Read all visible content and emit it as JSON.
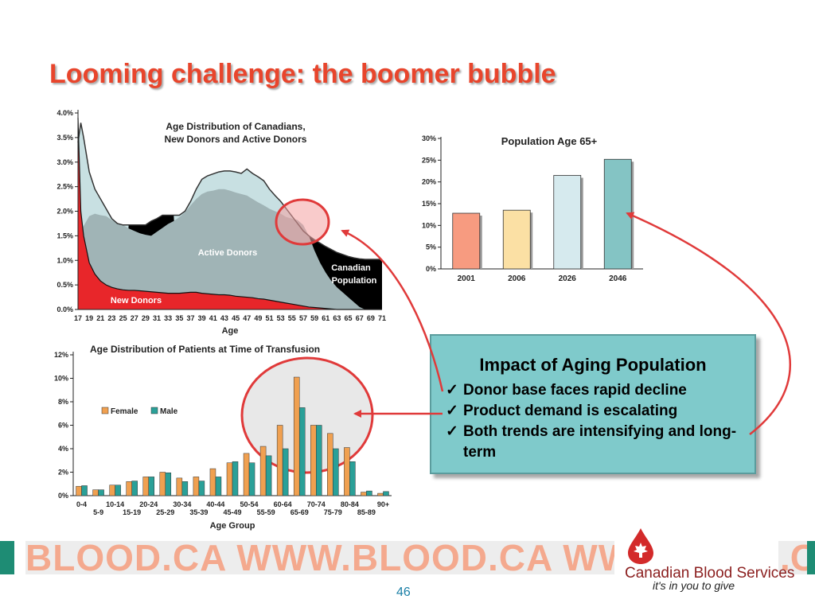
{
  "title": "Looming challenge: the boomer bubble",
  "chart_data": [
    {
      "type": "area",
      "title": "Age Distribution of Canadians,\nNew Donors and Active Donors",
      "title_lines": [
        "Age Distribution of Canadians,",
        "New Donors and Active Donors"
      ],
      "xlabel": "Age",
      "ylabel": "",
      "ylim": [
        0,
        4.0
      ],
      "y_ticks": [
        "0.0%",
        "0.5%",
        "1.0%",
        "1.5%",
        "2.0%",
        "2.5%",
        "3.0%",
        "3.5%",
        "4.0%"
      ],
      "x_ticks": [
        "17",
        "19",
        "21",
        "23",
        "25",
        "27",
        "29",
        "31",
        "33",
        "35",
        "37",
        "39",
        "41",
        "43",
        "45",
        "47",
        "49",
        "51",
        "53",
        "55",
        "57",
        "59",
        "61",
        "63",
        "65",
        "67",
        "69",
        "71"
      ],
      "x": [
        17,
        17.5,
        18,
        19,
        20,
        21,
        22,
        23,
        24,
        25,
        26,
        27,
        28,
        29,
        30,
        31,
        32,
        33,
        34,
        35,
        36,
        37,
        38,
        39,
        40,
        41,
        42,
        43,
        44,
        45,
        46,
        47,
        48,
        49,
        50,
        51,
        52,
        53,
        54,
        55,
        56,
        57,
        58,
        59,
        60,
        61,
        62,
        63,
        64,
        65,
        66,
        67,
        68,
        69,
        70,
        71
      ],
      "series": [
        {
          "name": "Canadian Population",
          "color": "#000000",
          "values": [
            3.4,
            3.8,
            3.5,
            2.8,
            2.45,
            2.25,
            2.05,
            1.85,
            1.75,
            1.72,
            1.72,
            1.72,
            1.72,
            1.72,
            1.8,
            1.85,
            1.92,
            1.92,
            1.92,
            1.92,
            2.0,
            2.2,
            2.45,
            2.65,
            2.72,
            2.76,
            2.8,
            2.82,
            2.82,
            2.8,
            2.77,
            2.86,
            2.77,
            2.7,
            2.62,
            2.45,
            2.32,
            2.2,
            2.05,
            1.9,
            1.75,
            1.6,
            1.5,
            1.42,
            1.35,
            1.28,
            1.22,
            1.16,
            1.12,
            1.08,
            1.05,
            1.03,
            1.02,
            1.02,
            1.02,
            1.02
          ]
        },
        {
          "name": "Active Donors",
          "color": "#a0b4b6",
          "values": [
            0.6,
            1.6,
            1.7,
            1.9,
            1.95,
            1.92,
            1.9,
            1.82,
            1.75,
            1.72,
            1.65,
            1.6,
            1.55,
            1.52,
            1.5,
            1.58,
            1.66,
            1.74,
            1.8,
            1.88,
            1.98,
            2.12,
            2.25,
            2.35,
            2.4,
            2.42,
            2.45,
            2.45,
            2.42,
            2.38,
            2.35,
            2.32,
            2.25,
            2.18,
            2.12,
            2.05,
            2.0,
            1.95,
            1.88,
            1.85,
            1.82,
            1.72,
            1.5,
            1.2,
            0.95,
            0.75,
            0.58,
            0.45,
            0.35,
            0.25,
            0.15,
            0.05,
            0.0,
            0.0,
            0.0,
            0.0
          ]
        },
        {
          "name": "New Donors",
          "color": "#e8262a",
          "values": [
            3.9,
            2.0,
            1.5,
            0.95,
            0.72,
            0.58,
            0.5,
            0.45,
            0.42,
            0.4,
            0.39,
            0.39,
            0.38,
            0.37,
            0.36,
            0.35,
            0.34,
            0.33,
            0.33,
            0.33,
            0.34,
            0.35,
            0.35,
            0.33,
            0.32,
            0.31,
            0.3,
            0.3,
            0.29,
            0.27,
            0.26,
            0.25,
            0.24,
            0.22,
            0.21,
            0.19,
            0.17,
            0.15,
            0.13,
            0.11,
            0.09,
            0.07,
            0.05,
            0.04,
            0.03,
            0.02,
            0.01,
            0.0,
            0.0,
            0.0,
            0.0,
            0.0,
            0.0,
            0.0,
            0.0,
            0.0
          ]
        }
      ],
      "background_series_color": "#c8e0e2",
      "labels": {
        "active_donors": "Active Donors",
        "new_donors": "New Donors",
        "canadian_line1": "Canadian",
        "canadian_line2": "Population"
      }
    },
    {
      "type": "bar",
      "title": "Population Age 65+",
      "categories": [
        "2001",
        "2006",
        "2026",
        "2046"
      ],
      "values": [
        12.8,
        13.5,
        21.5,
        25.2
      ],
      "colors": [
        "#f79b80",
        "#fbe0a4",
        "#d6eaee",
        "#84c4c4"
      ],
      "ylim": [
        0,
        30
      ],
      "y_ticks": [
        "0%",
        "5%",
        "10%",
        "15%",
        "20%",
        "25%",
        "30%"
      ]
    },
    {
      "type": "bar",
      "title": "Age Distribution of Patients at Time of Transfusion",
      "xlabel": "Age Group",
      "ylim": [
        0,
        12
      ],
      "y_ticks": [
        "0%",
        "2%",
        "4%",
        "6%",
        "8%",
        "10%",
        "12%"
      ],
      "categories": [
        "0-4",
        "5-9",
        "10-14",
        "15-19",
        "20-24",
        "25-29",
        "30-34",
        "35-39",
        "40-44",
        "45-49",
        "50-54",
        "55-59",
        "60-64",
        "65-69",
        "70-74",
        "75-79",
        "80-84",
        "85-89",
        "90+"
      ],
      "series": [
        {
          "name": "Female",
          "color": "#f0a050",
          "values": [
            0.8,
            0.5,
            0.9,
            1.2,
            1.6,
            2.0,
            1.5,
            1.6,
            2.3,
            2.8,
            3.6,
            4.2,
            6.0,
            10.1,
            6.0,
            5.3,
            4.1,
            0.3,
            0.2
          ]
        },
        {
          "name": "Male",
          "color": "#2aa098",
          "values": [
            0.85,
            0.5,
            0.9,
            1.25,
            1.6,
            1.95,
            1.2,
            1.25,
            1.6,
            2.9,
            2.8,
            3.4,
            4.0,
            7.5,
            6.0,
            4.0,
            2.9,
            0.4,
            0.35
          ]
        }
      ]
    }
  ],
  "impact_box": {
    "title": "Impact of Aging Population",
    "check_glyph": "✓",
    "items": [
      "Donor base faces rapid decline",
      "Product demand is escalating",
      "Both trends are intensifying and long-term"
    ]
  },
  "highlight_color": "#e03a3a",
  "footer": {
    "band_text": "BLOOD.CA WWW.BLOOD.CA WWW",
    "band_right_text": ".CA",
    "org_name": "Canadian Blood Services",
    "tagline": "it's in you to give",
    "logo_icon": "blood-drop-maple-leaf-icon"
  },
  "page_number": "46"
}
